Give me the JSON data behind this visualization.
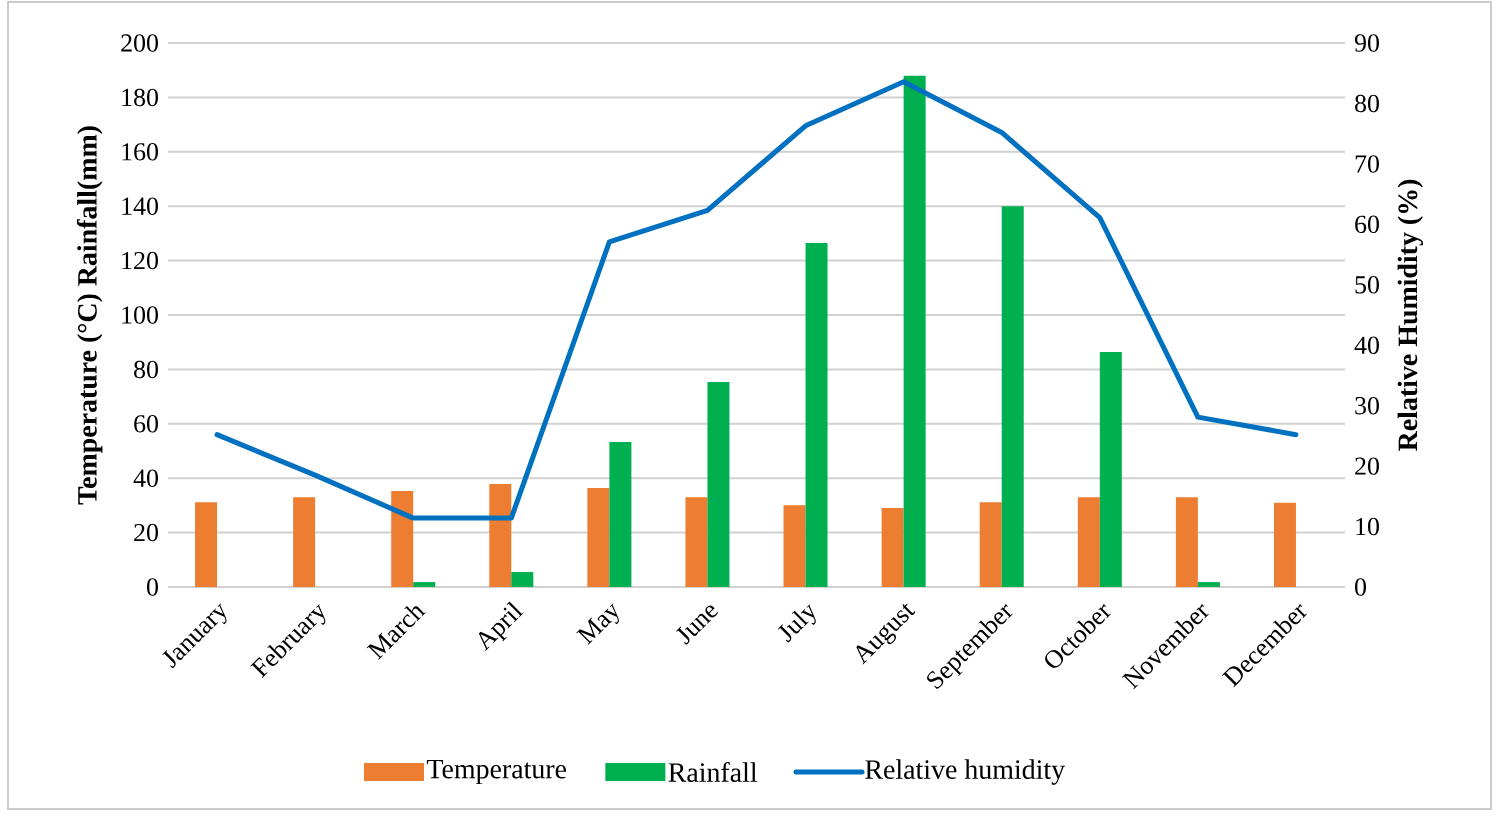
{
  "chart_data": {
    "type": "bar",
    "categories": [
      "January",
      "February",
      "March",
      "April",
      "May",
      "June",
      "July",
      "August",
      "September",
      "October",
      "November",
      "December"
    ],
    "series": [
      {
        "name": "Temperature",
        "color": "#ed7d31",
        "values": [
          31.2,
          33,
          35.3,
          37.9,
          36.4,
          33,
          30.1,
          29,
          31.2,
          33,
          33,
          31
        ]
      },
      {
        "name": "Rainfall",
        "color": "#00b050",
        "values": [
          0,
          0,
          1.8,
          5.5,
          53.3,
          75.4,
          126.5,
          188,
          140,
          86.4,
          1.8,
          0
        ]
      },
      {
        "name": "Relative humidity",
        "type": "line",
        "axis": "y2",
        "color": "#0070c0",
        "values": [
          25.2,
          18.5,
          11.4,
          11.4,
          57.1,
          62.3,
          76.3,
          83.6,
          75.2,
          61.1,
          28.1,
          25.2
        ]
      }
    ],
    "ylabel": "Temperature (°C) Rainfall(mm)",
    "y2label": "Relative Humidity (%)",
    "ylim": [
      0,
      200
    ],
    "yticks": [
      0,
      20,
      40,
      60,
      80,
      100,
      120,
      140,
      160,
      180,
      200
    ],
    "y2lim": [
      0,
      90
    ],
    "y2ticks": [
      0,
      10,
      20,
      30,
      40,
      50,
      60,
      70,
      80,
      90
    ],
    "grid": "y",
    "legend": "bottom"
  }
}
